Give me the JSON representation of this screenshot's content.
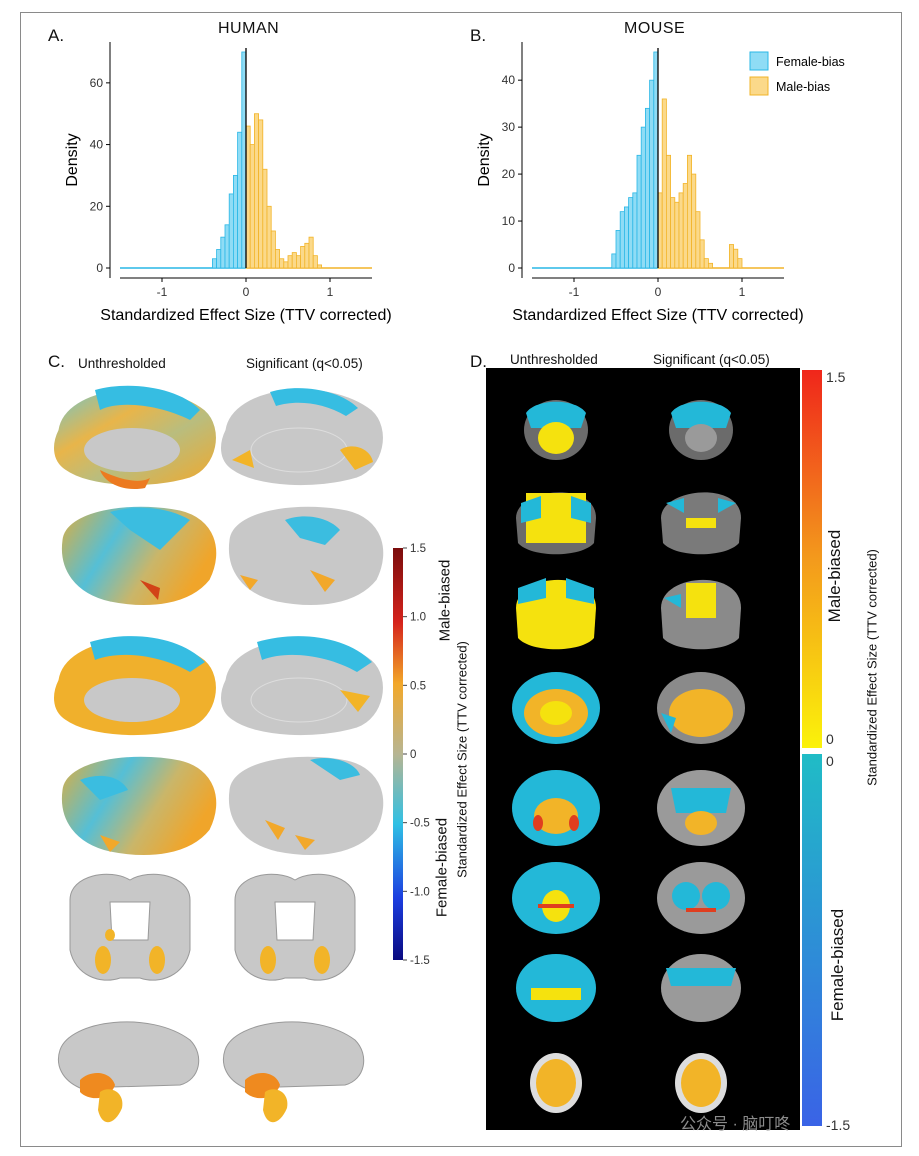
{
  "panels": {
    "a": {
      "letter": "A.",
      "title": "HUMAN"
    },
    "b": {
      "letter": "B.",
      "title": "MOUSE"
    },
    "c": {
      "letter": "C.",
      "col1": "Unthresholded",
      "col2": "Significant (q<0.05)"
    },
    "d": {
      "letter": "D.",
      "col1": "Unthresholded",
      "col2": "Significant (q<0.05)"
    }
  },
  "colors": {
    "female": "#29b7e6",
    "female_fill": "#8fdcf5",
    "male": "#f2b428",
    "male_fill": "#fbd98a",
    "brain_gray": "#c8c8c8"
  },
  "chart_data": [
    {
      "type": "bar",
      "title": "HUMAN",
      "xlabel": "Standardized Effect Size (TTV corrected)",
      "ylabel": "Density",
      "xlim": [
        -1.5,
        1.5
      ],
      "ylim": [
        0,
        70
      ],
      "xticks": [
        "-1",
        "0",
        "1"
      ],
      "yticks": [
        "0",
        "20",
        "40",
        "60"
      ],
      "bin_width": 0.05,
      "series": [
        {
          "name": "Female-bias",
          "bins": [
            -0.4,
            -0.35,
            -0.3,
            -0.25,
            -0.2,
            -0.15,
            -0.1,
            -0.05
          ],
          "values": [
            3,
            6,
            10,
            14,
            24,
            30,
            44,
            70
          ]
        },
        {
          "name": "Male-bias",
          "bins": [
            0.0,
            0.05,
            0.1,
            0.15,
            0.2,
            0.25,
            0.3,
            0.35,
            0.4,
            0.45,
            0.5,
            0.55,
            0.6,
            0.65,
            0.7,
            0.75,
            0.8,
            0.85
          ],
          "values": [
            46,
            40,
            50,
            48,
            32,
            20,
            12,
            6,
            3,
            2,
            4,
            5,
            4,
            7,
            8,
            10,
            4,
            1
          ]
        }
      ]
    },
    {
      "type": "bar",
      "title": "MOUSE",
      "xlabel": "Standardized Effect Size (TTV corrected)",
      "ylabel": "Density",
      "xlim": [
        -1.5,
        1.5
      ],
      "ylim": [
        0,
        46
      ],
      "xticks": [
        "-1",
        "0",
        "1"
      ],
      "yticks": [
        "0",
        "10",
        "20",
        "30",
        "40"
      ],
      "bin_width": 0.05,
      "legend": [
        "Female-bias",
        "Male-bias"
      ],
      "legend_position": "top-right",
      "series": [
        {
          "name": "Female-bias",
          "bins": [
            -0.55,
            -0.5,
            -0.45,
            -0.4,
            -0.35,
            -0.3,
            -0.25,
            -0.2,
            -0.15,
            -0.1,
            -0.05
          ],
          "values": [
            3,
            8,
            12,
            13,
            15,
            16,
            24,
            30,
            34,
            40,
            46
          ]
        },
        {
          "name": "Male-bias",
          "bins": [
            0.0,
            0.05,
            0.1,
            0.15,
            0.2,
            0.25,
            0.3,
            0.35,
            0.4,
            0.45,
            0.5,
            0.55,
            0.6,
            0.65,
            0.7,
            0.75,
            0.8,
            0.85,
            0.9,
            0.95
          ],
          "values": [
            16,
            36,
            24,
            15,
            14,
            16,
            18,
            24,
            20,
            12,
            6,
            2,
            1,
            0,
            0,
            0,
            0,
            5,
            4,
            2
          ]
        }
      ]
    }
  ],
  "colorbar_c": {
    "top_label": "Male-biased",
    "bottom_label": "Female-biased",
    "axis_label": "Standardized Effect Size (TTV corrected)",
    "ticks": [
      "1.5",
      "1.0",
      "0.5",
      "0",
      "-0.5",
      "-1.0",
      "-1.5"
    ]
  },
  "colorbar_d": {
    "top_label": "Male-biased",
    "bottom_label": "Female-biased",
    "axis_label": "Standardized Effect Size (TTV corrected)",
    "ticks_male": [
      "1.5",
      "0"
    ],
    "ticks_female": [
      "0",
      "-1.5"
    ]
  },
  "watermark": "公众号 · 脑叮咚"
}
